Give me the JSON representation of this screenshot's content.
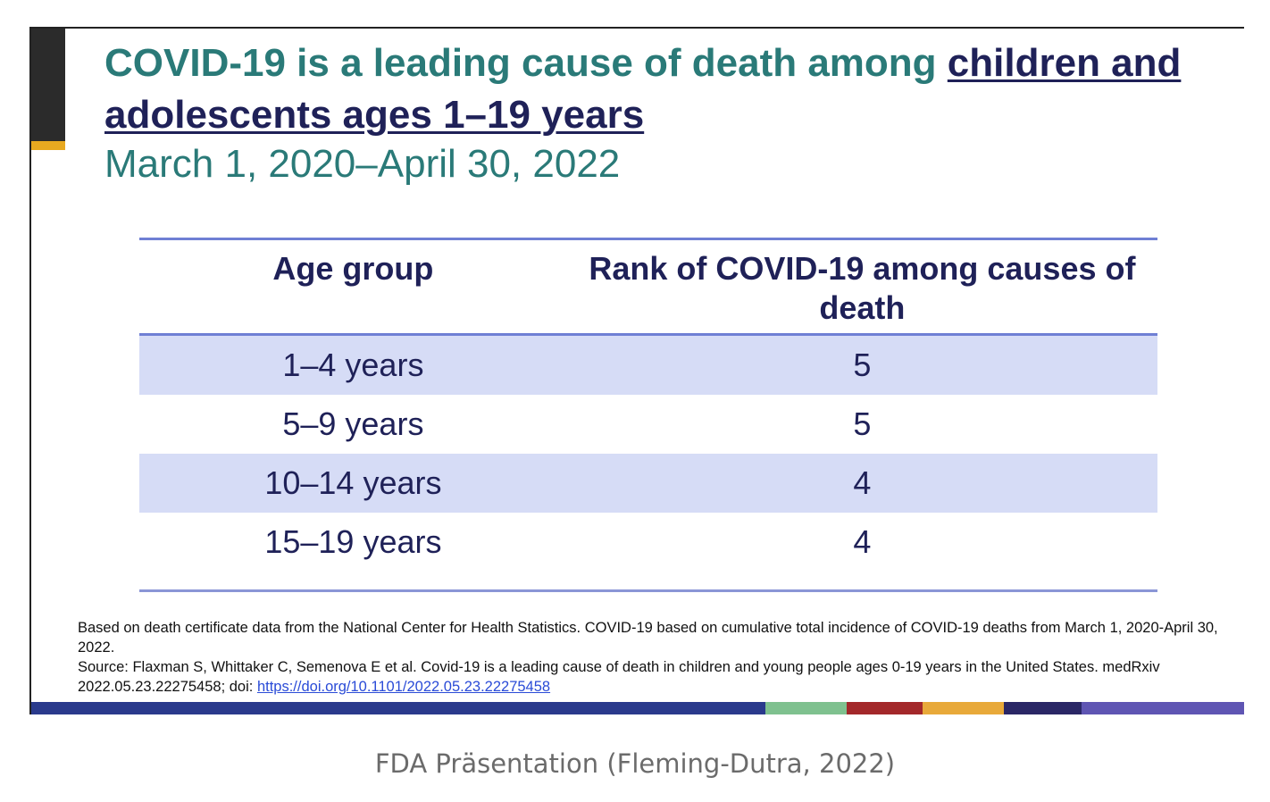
{
  "slide": {
    "title_part1": "COVID-19 is a leading cause of death among ",
    "title_emphasis": "children and adolescents ages 1–19 years",
    "subtitle": "March 1, 2020–April 30, 2022",
    "table": {
      "headers": {
        "age_group": "Age group",
        "rank": "Rank of COVID-19 among causes of death"
      },
      "rows": [
        {
          "age_group": "1–4 years",
          "rank": "5"
        },
        {
          "age_group": "5–9 years",
          "rank": "5"
        },
        {
          "age_group": "10–14 years",
          "rank": "4"
        },
        {
          "age_group": "15–19 years",
          "rank": "4"
        }
      ]
    },
    "footnote": {
      "line1": "Based on death certificate data from the National Center for Health Statistics. COVID-19 based on cumulative total incidence of COVID-19 deaths from March 1, 2020-April 30, 2022.",
      "line2": "Source: Flaxman S, Whittaker C, Semenova E et al. Covid-19 is a leading cause of death in children and young people ages 0-19 years in the United States. medRxiv 2022.05.23.22275458; doi: ",
      "link": "https://doi.org/10.1101/2022.05.23.22275458"
    },
    "colors": {
      "title": "#2a7a78",
      "emphasis": "#1f2158",
      "table_text": "#1f2158",
      "row_shade": "#d6dcf6",
      "rule": "#6f7fd4",
      "side_bar": "#2b2b2b",
      "side_accent": "#e8a920",
      "bottom_stripe": [
        "#2a3a8c",
        "#7fc18f",
        "#a3282a",
        "#e8a93a",
        "#2a2766",
        "#5f55b3"
      ]
    }
  },
  "caption": "FDA Präsentation (Fleming-Dutra, 2022)"
}
